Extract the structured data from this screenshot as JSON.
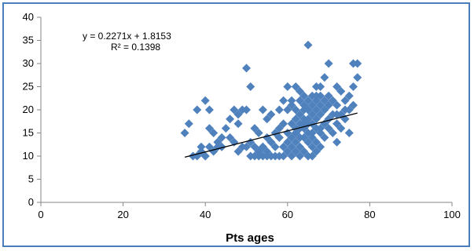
{
  "chart_data": {
    "type": "scatter",
    "title": "",
    "xlabel": "Pts ages",
    "ylabel": "",
    "xlim": [
      0,
      100
    ],
    "ylim": [
      0,
      40
    ],
    "xticks": [
      0,
      20,
      40,
      60,
      80,
      100
    ],
    "yticks": [
      0,
      5,
      10,
      15,
      20,
      25,
      30,
      35,
      40
    ],
    "grid": false,
    "legend": "none",
    "marker": "diamond",
    "marker_color": "#4f81bd",
    "trendline": {
      "type": "linear",
      "slope": 0.2271,
      "intercept": 1.8153,
      "x_range": [
        35,
        77
      ],
      "color": "#000000",
      "equation_label": "y = 0.2271x + 1.8153",
      "r2_label": "R² = 0.1398"
    },
    "series": [
      {
        "x": [
          35,
          36,
          37,
          38,
          39,
          40,
          40,
          41,
          41,
          42,
          43,
          44,
          45,
          46,
          47,
          47,
          48,
          48,
          49,
          49,
          50,
          50,
          51,
          51,
          52,
          52,
          52,
          53,
          53,
          53,
          54,
          54,
          54,
          55,
          55,
          55,
          55,
          56,
          56,
          56,
          57,
          57,
          57,
          58,
          58,
          58,
          58,
          59,
          59,
          59,
          59,
          60,
          60,
          60,
          60,
          61,
          61,
          61,
          61,
          61,
          61,
          62,
          62,
          62,
          62,
          62,
          62,
          62,
          63,
          63,
          63,
          63,
          63,
          63,
          63,
          64,
          64,
          64,
          64,
          64,
          64,
          64,
          65,
          65,
          65,
          65,
          65,
          65,
          65,
          65,
          66,
          66,
          66,
          66,
          66,
          66,
          66,
          67,
          67,
          67,
          67,
          67,
          67,
          67,
          68,
          68,
          68,
          68,
          68,
          68,
          69,
          69,
          69,
          69,
          69,
          70,
          70,
          70,
          70,
          70,
          71,
          71,
          71,
          72,
          72,
          72,
          72,
          73,
          73,
          73,
          74,
          74,
          75,
          75,
          75,
          76,
          76,
          76,
          77,
          77,
          38,
          39,
          40,
          41,
          42,
          43,
          44,
          46,
          48,
          50,
          51,
          53,
          54,
          56,
          58,
          60,
          62,
          64,
          66,
          68,
          70,
          72,
          74,
          63,
          65,
          67
        ],
        "y": [
          15,
          17,
          10,
          20,
          12,
          22,
          10,
          16,
          20,
          15,
          12,
          14,
          16,
          18,
          13,
          20,
          17,
          19,
          20,
          12,
          29,
          20,
          25,
          10,
          16,
          12,
          10,
          15,
          11,
          10,
          20,
          12,
          10,
          14,
          11,
          10,
          18,
          19,
          13,
          10,
          15,
          12,
          10,
          20,
          16,
          14,
          10,
          17,
          12,
          10,
          22,
          13,
          11,
          25,
          20,
          22,
          14,
          12,
          10,
          21,
          17,
          15,
          25,
          20,
          18,
          15,
          13,
          11,
          22,
          19,
          17,
          14,
          12,
          10,
          16,
          23,
          21,
          18,
          16,
          14,
          11,
          20,
          34,
          22,
          20,
          18,
          17,
          15,
          13,
          10,
          23,
          21,
          19,
          17,
          14,
          12,
          10,
          25,
          22,
          20,
          18,
          16,
          13,
          11,
          25,
          23,
          21,
          19,
          15,
          12,
          27,
          22,
          20,
          17,
          14,
          30,
          23,
          21,
          18,
          16,
          22,
          19,
          15,
          25,
          21,
          17,
          13,
          24,
          19,
          16,
          22,
          18,
          15,
          20,
          23,
          30,
          25,
          21,
          30,
          27,
          10,
          11,
          10,
          12,
          11,
          13,
          12,
          14,
          11,
          12,
          13,
          11,
          12,
          13,
          14,
          15,
          16,
          17,
          15,
          16,
          18,
          19,
          20,
          24,
          20,
          23
        ]
      }
    ]
  }
}
